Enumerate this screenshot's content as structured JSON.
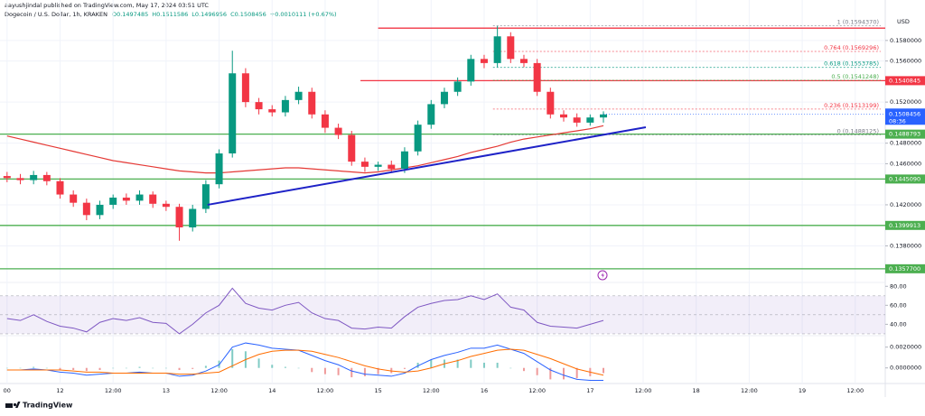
{
  "header": {
    "published": "aayushjindal published on TradingView.com, May 17, 2024 03:51 UTC",
    "symbol": "Dogecoin / U.S. Dollar, 1h, KRAKEN",
    "ohlc": [
      "O0.1497485",
      "H0.1511586",
      "L0.1496956",
      "C0.1508456",
      "+0.0010111 (+0.67%)"
    ]
  },
  "footer": {
    "brand": "TradingView"
  },
  "chart_data": [
    {
      "type": "candlestick",
      "currency": "USD",
      "x": [
        0,
        3,
        6,
        9,
        12,
        15,
        18,
        21,
        24,
        27,
        30,
        33,
        36,
        39,
        42,
        45,
        48,
        51,
        54,
        57,
        60,
        63,
        66,
        69,
        72,
        75,
        78,
        81,
        84,
        87,
        90,
        93,
        96,
        99,
        102,
        105,
        108,
        111,
        114,
        117,
        120,
        123,
        126,
        129,
        132,
        135
      ],
      "open": [
        0.1448,
        0.1446,
        0.1444,
        0.1449,
        0.1443,
        0.143,
        0.1422,
        0.141,
        0.142,
        0.1427,
        0.1424,
        0.143,
        0.1421,
        0.1418,
        0.1398,
        0.1416,
        0.144,
        0.147,
        0.1548,
        0.152,
        0.1513,
        0.151,
        0.1522,
        0.153,
        0.1508,
        0.1495,
        0.1488,
        0.1462,
        0.1457,
        0.1459,
        0.1455,
        0.1472,
        0.1498,
        0.1518,
        0.153,
        0.154,
        0.1562,
        0.1558,
        0.1584,
        0.1562,
        0.1558,
        0.153,
        0.1508,
        0.1505,
        0.15,
        0.1505
      ],
      "high": [
        0.1452,
        0.145,
        0.1453,
        0.1452,
        0.1446,
        0.1434,
        0.1426,
        0.1424,
        0.143,
        0.1431,
        0.1434,
        0.1433,
        0.1424,
        0.1421,
        0.142,
        0.1444,
        0.1474,
        0.157,
        0.1553,
        0.1524,
        0.1517,
        0.1526,
        0.1535,
        0.1534,
        0.1512,
        0.1499,
        0.1492,
        0.1466,
        0.1462,
        0.1463,
        0.1476,
        0.1502,
        0.1522,
        0.1534,
        0.1544,
        0.1566,
        0.1566,
        0.1594,
        0.1588,
        0.1566,
        0.1562,
        0.1534,
        0.1512,
        0.1509,
        0.1508,
        0.1511
      ],
      "low": [
        0.1442,
        0.144,
        0.144,
        0.1439,
        0.1426,
        0.1418,
        0.1405,
        0.1406,
        0.1416,
        0.142,
        0.142,
        0.1417,
        0.1414,
        0.1385,
        0.1394,
        0.1412,
        0.1436,
        0.1466,
        0.1515,
        0.1508,
        0.1506,
        0.1506,
        0.1518,
        0.1504,
        0.149,
        0.1484,
        0.1458,
        0.1452,
        0.1453,
        0.1451,
        0.1451,
        0.1468,
        0.1494,
        0.1514,
        0.1526,
        0.1536,
        0.1553,
        0.1554,
        0.1558,
        0.1554,
        0.1526,
        0.1504,
        0.1501,
        0.1496,
        0.1497,
        0.15
      ],
      "close": [
        0.1446,
        0.1444,
        0.1449,
        0.1443,
        0.143,
        0.1422,
        0.141,
        0.142,
        0.1427,
        0.1424,
        0.143,
        0.1421,
        0.1418,
        0.1398,
        0.1416,
        0.144,
        0.147,
        0.1548,
        0.152,
        0.1513,
        0.151,
        0.1522,
        0.153,
        0.1508,
        0.1495,
        0.1488,
        0.1462,
        0.1457,
        0.1459,
        0.1455,
        0.1472,
        0.1498,
        0.1518,
        0.153,
        0.154,
        0.1562,
        0.1558,
        0.1584,
        0.1562,
        0.1558,
        0.153,
        0.1508,
        0.1505,
        0.15,
        0.1505,
        0.1508
      ],
      "colors": {
        "up": "#089981",
        "down": "#f23645"
      },
      "ma": {
        "color": "#e53935",
        "values": [
          0.1487,
          0.1484,
          0.1481,
          0.1478,
          0.1475,
          0.1472,
          0.1469,
          0.1466,
          0.1463,
          0.1461,
          0.1459,
          0.1457,
          0.1455,
          0.1453,
          0.1452,
          0.1451,
          0.1451,
          0.1452,
          0.1453,
          0.1454,
          0.1455,
          0.1456,
          0.1456,
          0.1455,
          0.1454,
          0.1453,
          0.1452,
          0.1451,
          0.1452,
          0.1454,
          0.1456,
          0.1458,
          0.1461,
          0.1464,
          0.1467,
          0.1471,
          0.1474,
          0.1477,
          0.1481,
          0.1484,
          0.1486,
          0.1488,
          0.149,
          0.1492,
          0.1494,
          0.1497
        ]
      },
      "xlim": [
        -1.6,
        198.8
      ],
      "xticks": [
        {
          "value": 0,
          "label": "00"
        },
        {
          "value": 12,
          "label": "12"
        },
        {
          "value": 24,
          "label": "12:00"
        },
        {
          "value": 36,
          "label": "13"
        },
        {
          "value": 48,
          "label": "12:00"
        },
        {
          "value": 60,
          "label": "14"
        },
        {
          "value": 72,
          "label": "12:00"
        },
        {
          "value": 84,
          "label": "15"
        },
        {
          "value": 96,
          "label": "12:00"
        },
        {
          "value": 108,
          "label": "16"
        },
        {
          "value": 120,
          "label": "12:00"
        },
        {
          "value": 132,
          "label": "17"
        },
        {
          "value": 144,
          "label": "12:00"
        },
        {
          "value": 156,
          "label": "18"
        },
        {
          "value": 168,
          "label": "12:00"
        },
        {
          "value": 180,
          "label": "19"
        },
        {
          "value": 192,
          "label": "12:00"
        }
      ],
      "ylim": [
        0.134,
        0.1615
      ],
      "yticks": [
        {
          "value": 0.158,
          "label": "0.1580000"
        },
        {
          "value": 0.156,
          "label": "0.1560000"
        },
        {
          "value": 0.152,
          "label": "0.1520000"
        },
        {
          "value": 0.148,
          "label": "0.1480000"
        },
        {
          "value": 0.146,
          "label": "0.1460000"
        },
        {
          "value": 0.142,
          "label": "0.1420000"
        },
        {
          "value": 0.138,
          "label": "0.1380000"
        }
      ],
      "grid": true,
      "levels": [
        {
          "value": 0.1592,
          "color": "#f23645",
          "badge": false
        },
        {
          "value": 0.1540845,
          "color": "#f23645"
        },
        {
          "value": 0.1488793,
          "color": "#4caf50"
        },
        {
          "value": 0.144509,
          "label": "0.1445090",
          "color": "#4caf50"
        },
        {
          "value": 0.1399913,
          "color": "#4caf50"
        },
        {
          "value": 0.13577,
          "label": "0.1357700",
          "color": "#4caf50"
        }
      ],
      "fib": [
        {
          "value": 0.159437,
          "label": "1 (0.1594370)",
          "color": "#787b86"
        },
        {
          "value": 0.1569296,
          "label": "0.764 (0.1569296)",
          "color": "#f23645"
        },
        {
          "value": 0.1553785,
          "label": "0.618 (0.1553785)",
          "color": "#089981"
        },
        {
          "value": 0.1541248,
          "label": "0.5 (0.1541248)",
          "color": "#4caf50"
        },
        {
          "value": 0.1513199,
          "label": "0.236 (0.1513199)",
          "color": "#f23645"
        },
        {
          "value": 0.1488125,
          "label": "0 (0.1488125)",
          "color": "#787b86"
        }
      ],
      "trendline": {
        "x": [
          45.4,
          144.6
        ],
        "y": [
          0.142,
          0.14955
        ],
        "color": "#1e22c7"
      },
      "last": {
        "value": 0.1508456,
        "countdown": "08:36",
        "color": "#2962ff"
      }
    },
    {
      "type": "line",
      "series": [
        {
          "color": "#7e57c2",
          "values": [
            46,
            44,
            50,
            43,
            38,
            36,
            32,
            42,
            46,
            44,
            47,
            42,
            41,
            30,
            40,
            52,
            60,
            78,
            62,
            57,
            55,
            60,
            63,
            52,
            46,
            44,
            36,
            35,
            37,
            36,
            48,
            58,
            62,
            65,
            66,
            70,
            66,
            72,
            58,
            55,
            42,
            38,
            37,
            36,
            40,
            44
          ]
        }
      ],
      "ylim": [
        28,
        85
      ],
      "yticks": [
        {
          "value": 80,
          "label": "80.00"
        },
        {
          "value": 60,
          "label": "60.00"
        },
        {
          "value": 40,
          "label": "40.00"
        }
      ],
      "bands": [
        70,
        50,
        30
      ],
      "band_color": "#7e57c2"
    },
    {
      "type": "macd",
      "macd": {
        "color": "#2962ff",
        "values": [
          -0.0002,
          -0.0002,
          -0.0001,
          -0.0002,
          -0.0004,
          -0.0005,
          -0.0007,
          -0.0006,
          -0.0005,
          -0.0005,
          -0.0004,
          -0.0005,
          -0.0005,
          -0.0008,
          -0.0007,
          -0.0003,
          0.0003,
          0.002,
          0.0024,
          0.0022,
          0.0019,
          0.0018,
          0.0017,
          0.0012,
          0.0007,
          0.0003,
          -0.0003,
          -0.0006,
          -0.0007,
          -0.0008,
          -0.0005,
          0.0002,
          0.0008,
          0.0012,
          0.0015,
          0.0019,
          0.0019,
          0.0022,
          0.0018,
          0.0014,
          0.0006,
          -0.0002,
          -0.0007,
          -0.0011,
          -0.0012,
          -0.0012
        ]
      },
      "signal": {
        "color": "#ff6d00",
        "values": [
          -0.0002,
          -0.0002,
          -0.0002,
          -0.0002,
          -0.0002,
          -0.0003,
          -0.0004,
          -0.0004,
          -0.0005,
          -0.0005,
          -0.0005,
          -0.0005,
          -0.0005,
          -0.0006,
          -0.0006,
          -0.0005,
          -0.0004,
          0.0002,
          0.0008,
          0.0013,
          0.0016,
          0.0017,
          0.0017,
          0.0016,
          0.0013,
          0.001,
          0.0006,
          0.0002,
          -0.0001,
          -0.0003,
          -0.0004,
          -0.0003,
          0,
          0.0004,
          0.0007,
          0.0011,
          0.0014,
          0.0017,
          0.0018,
          0.0017,
          0.0013,
          0.0009,
          0.0004,
          -0.0001,
          -0.0004,
          -0.0007
        ]
      },
      "histogram": {
        "up": "#80cbc4",
        "down": "#ef9a9a",
        "values": [
          0,
          0,
          0.0001,
          0,
          -0.0002,
          -0.0002,
          -0.0003,
          -0.0002,
          0,
          0,
          0.0001,
          0,
          0,
          -0.0002,
          -0.0001,
          0.0002,
          0.0007,
          0.0018,
          0.0016,
          0.0009,
          0.0003,
          0.0001,
          0,
          -0.0004,
          -0.0006,
          -0.0007,
          -0.0009,
          -0.0008,
          -0.0006,
          -0.0005,
          -0.0001,
          0.0005,
          0.0008,
          0.0008,
          0.0008,
          0.0008,
          0.0005,
          0.0005,
          0,
          -0.0003,
          -0.0007,
          -0.0011,
          -0.0011,
          -0.001,
          -0.0008,
          -0.0005
        ]
      },
      "ylim": [
        -0.0015,
        0.0031
      ],
      "yticks": [
        {
          "value": 0.002,
          "label": "0.0020000"
        },
        {
          "value": 0,
          "label": "0.0000000"
        }
      ]
    }
  ]
}
